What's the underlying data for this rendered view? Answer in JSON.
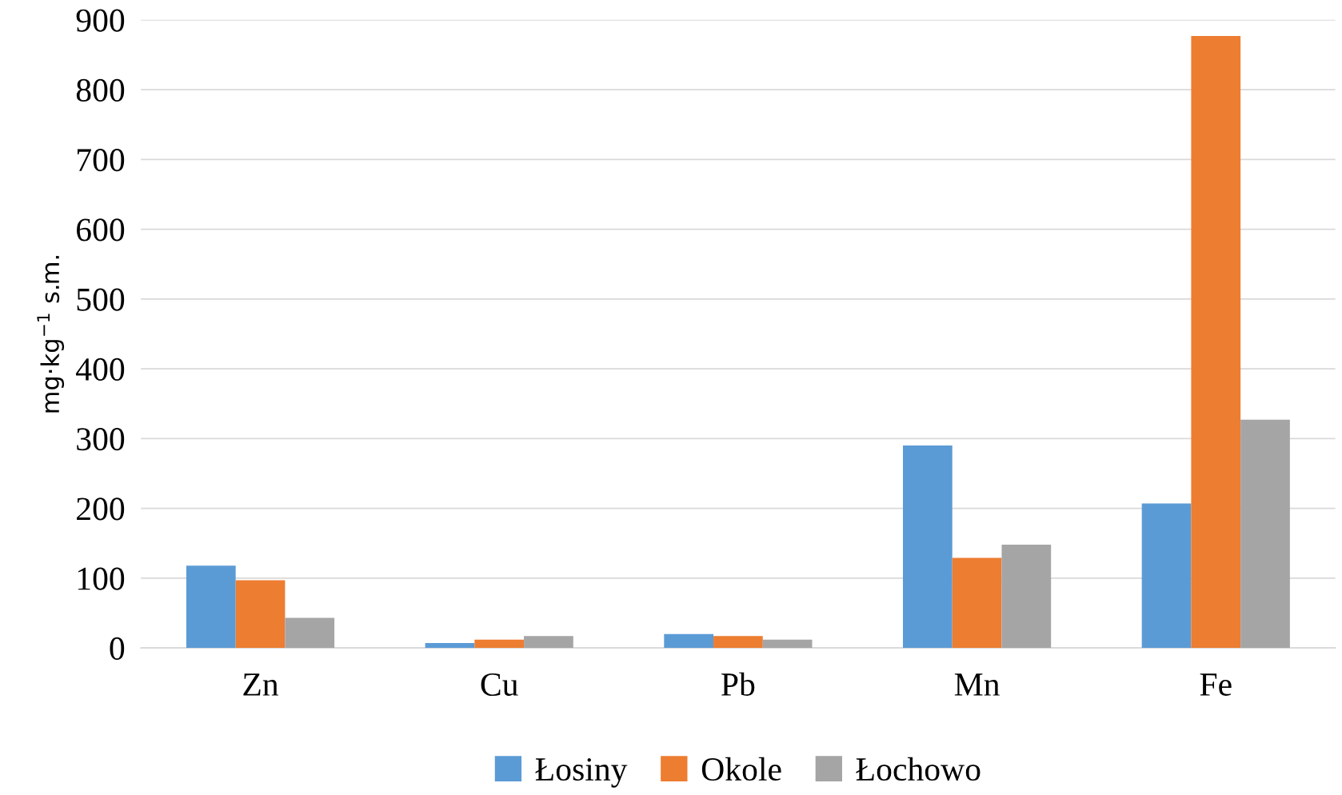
{
  "chart_data": {
    "type": "bar",
    "ylabel": "mg·kg$^{−1}$ s.m.",
    "categories": [
      "Zn",
      "Cu",
      "Pb",
      "Mn",
      "Fe"
    ],
    "series": [
      {
        "name": "Łosiny",
        "color": "#5b9bd5",
        "values": [
          118,
          7,
          20,
          290,
          207
        ]
      },
      {
        "name": "Okole",
        "color": "#ed7d31",
        "values": [
          97,
          12,
          17,
          129,
          877
        ]
      },
      {
        "name": "Łochowo",
        "color": "#a5a5a5",
        "values": [
          43,
          17,
          12,
          148,
          327
        ]
      }
    ],
    "ylim": [
      0,
      900
    ],
    "yticks": [
      0,
      100,
      200,
      300,
      400,
      500,
      600,
      700,
      800,
      900
    ],
    "grid": "y",
    "legend": "bottom"
  }
}
